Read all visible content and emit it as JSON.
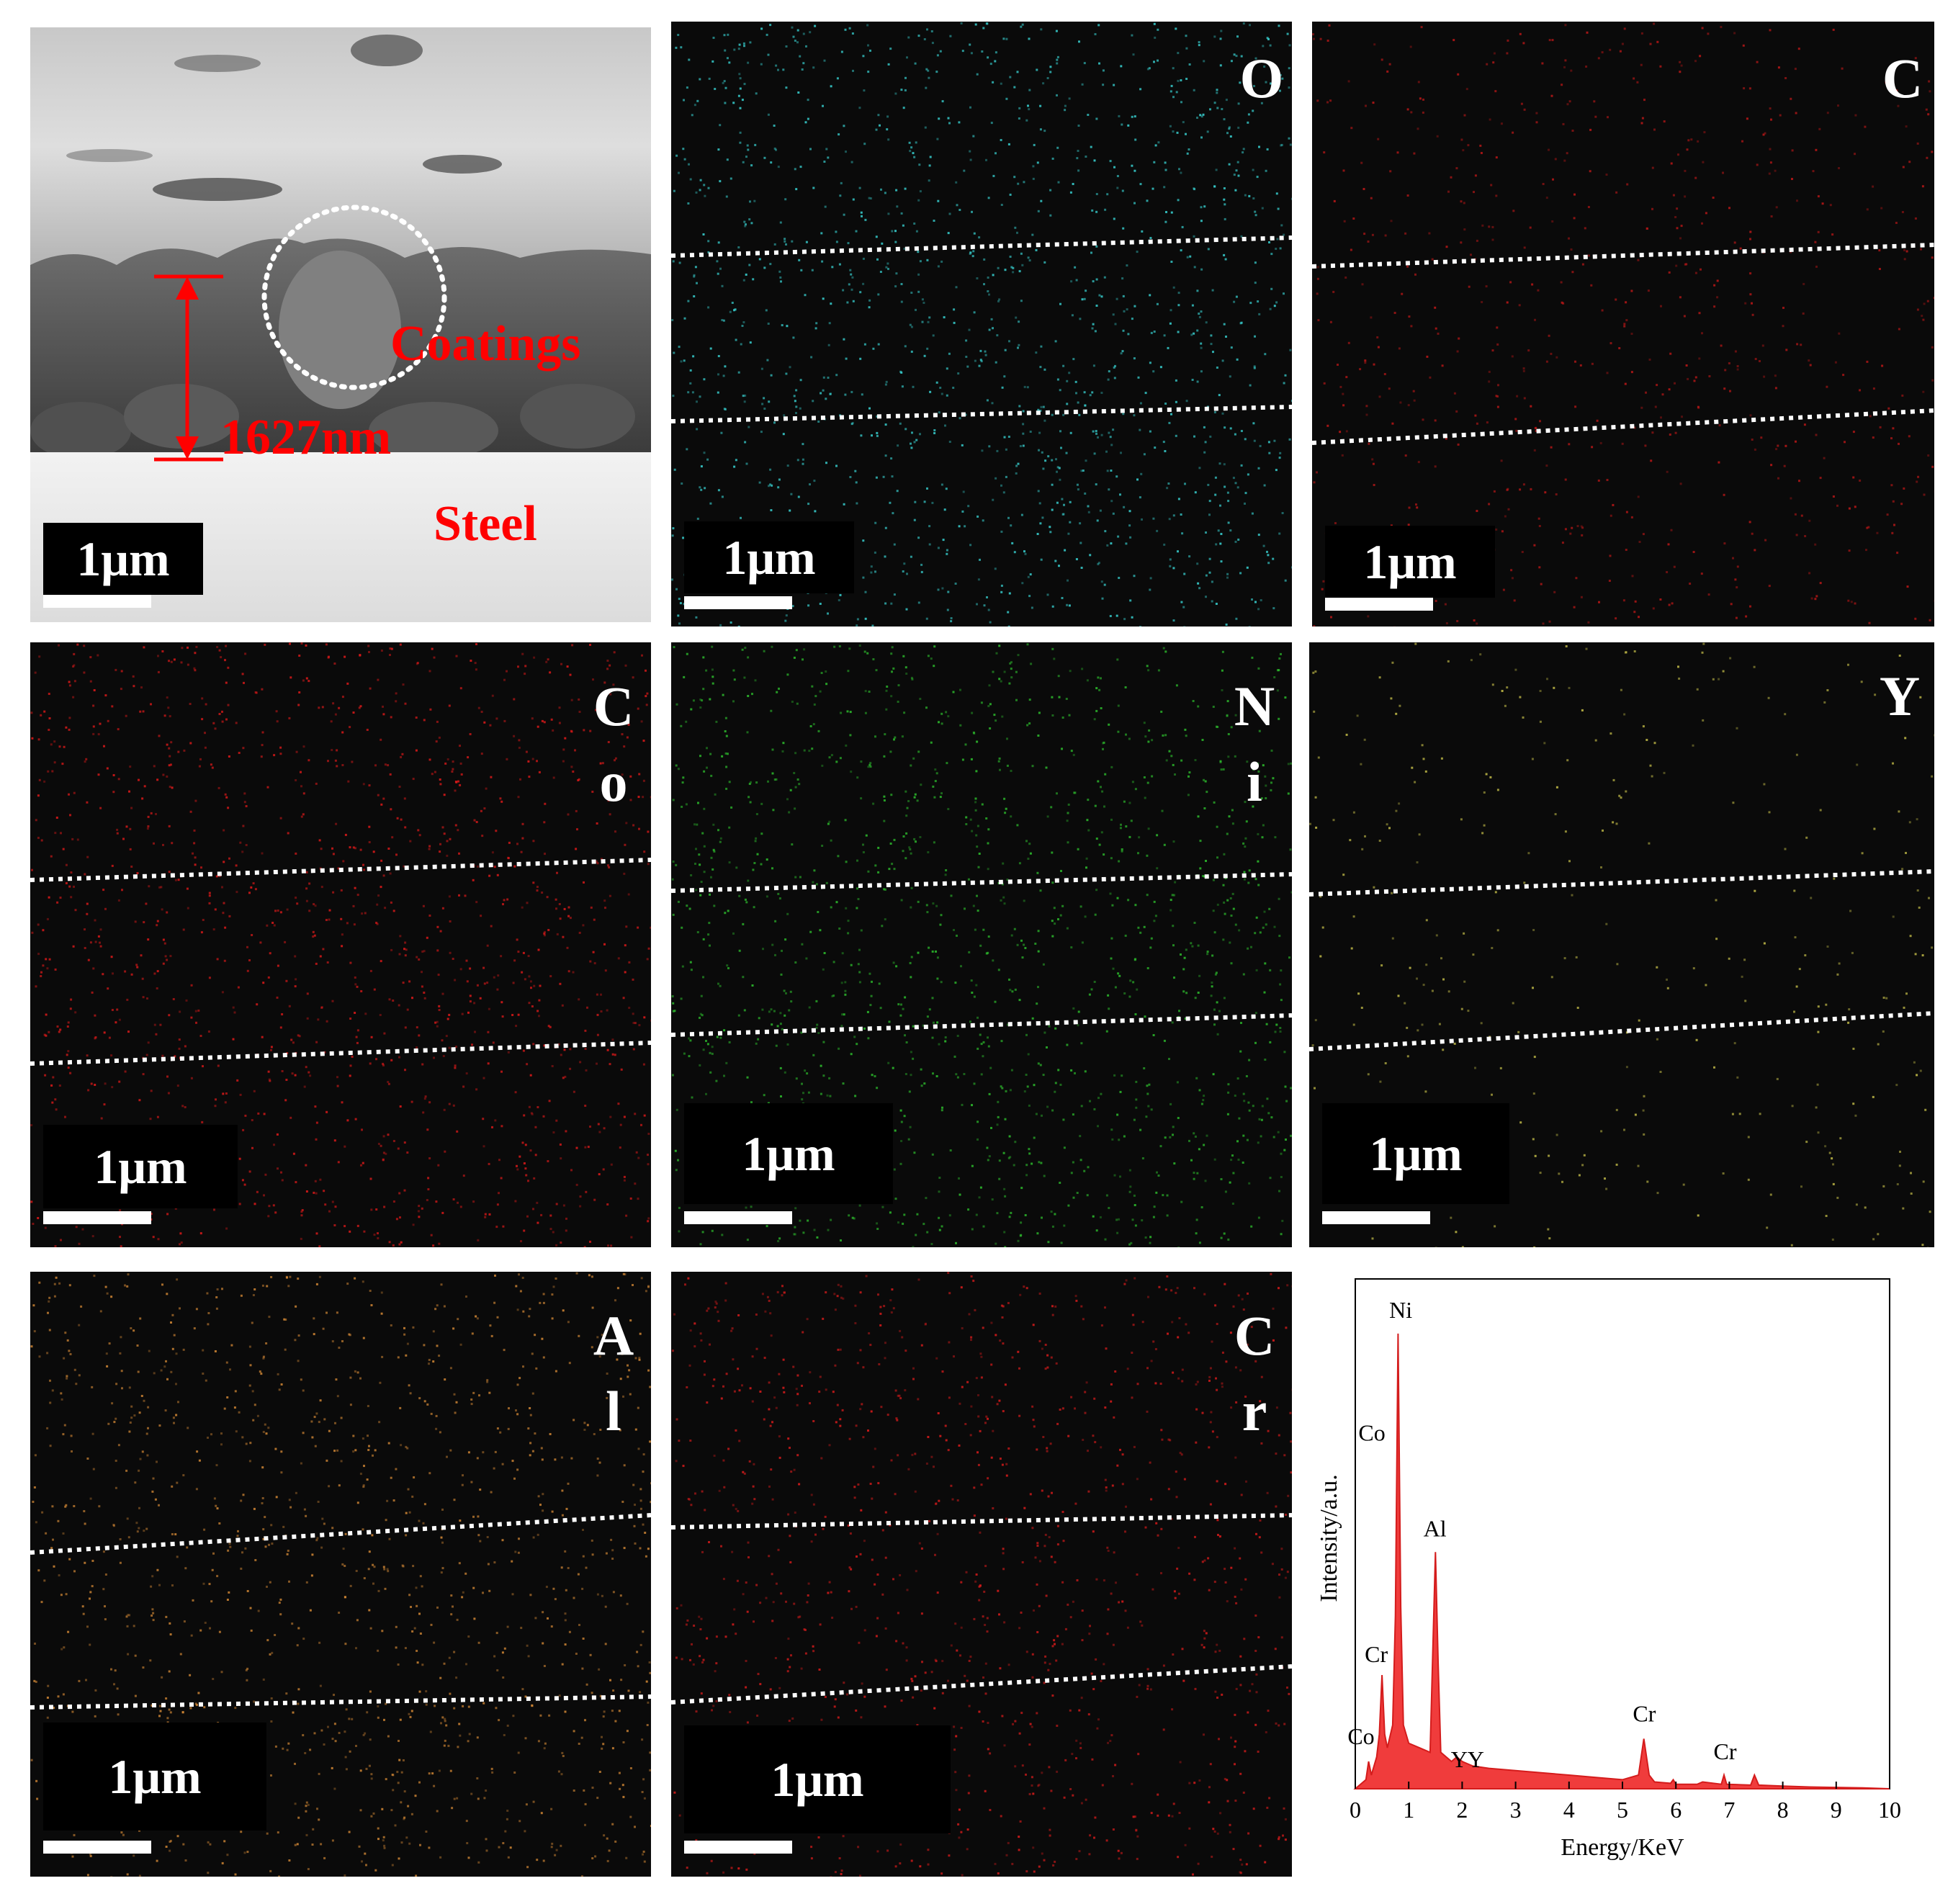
{
  "figure": {
    "scale_bar": "1μm",
    "sem": {
      "coatings_label": "Coatings",
      "thickness_label": "1627nm",
      "steel_label": "Steel"
    },
    "maps": [
      {
        "id": "O",
        "line1": "O",
        "line2": "",
        "color": "#39d6d6"
      },
      {
        "id": "C",
        "line1": "C",
        "line2": "",
        "color": "#c21818"
      },
      {
        "id": "Co",
        "line1": "C",
        "line2": "o",
        "color": "#e31a1a"
      },
      {
        "id": "Ni",
        "line1": "N",
        "line2": "i",
        "color": "#2ec22e"
      },
      {
        "id": "Y",
        "line1": "Y",
        "line2": "",
        "color": "#c9c24a"
      },
      {
        "id": "Al",
        "line1": "A",
        "line2": "l",
        "color": "#d68a36"
      },
      {
        "id": "Cr",
        "line1": "C",
        "line2": "r",
        "color": "#e01c1c"
      }
    ]
  },
  "chart_data": {
    "type": "area",
    "xlabel": "Energy/KeV",
    "ylabel": "Intensity/a.u.",
    "xlim": [
      0,
      10
    ],
    "xticks": [
      "0",
      "1",
      "2",
      "3",
      "4",
      "5",
      "6",
      "7",
      "8",
      "9",
      "10"
    ],
    "fill_color": "#f03c3c",
    "x": [
      0,
      0.2,
      0.25,
      0.3,
      0.4,
      0.45,
      0.5,
      0.55,
      0.6,
      0.7,
      0.75,
      0.8,
      0.85,
      0.9,
      1.0,
      1.2,
      1.4,
      1.45,
      1.5,
      1.55,
      1.6,
      1.8,
      1.9,
      2.0,
      2.2,
      2.5,
      3.0,
      3.5,
      4.0,
      4.5,
      5.0,
      5.3,
      5.4,
      5.5,
      5.6,
      5.9,
      5.95,
      6.0,
      6.4,
      6.5,
      6.85,
      6.9,
      6.95,
      7.4,
      7.47,
      7.55,
      8.0,
      8.5,
      9.0,
      9.5,
      10.0
    ],
    "y": [
      0,
      2,
      6,
      3,
      7,
      12,
      25,
      12,
      9,
      14,
      38,
      100,
      40,
      14,
      10,
      9,
      8,
      30,
      52,
      28,
      8,
      6,
      7,
      6,
      5,
      4.5,
      4,
      3.5,
      3,
      2.5,
      2,
      3,
      11,
      3,
      1.5,
      1.2,
      2,
      1,
      1,
      1.5,
      1,
      3,
      1,
      0.8,
      3,
      0.8,
      0.6,
      0.4,
      0.3,
      0.2,
      0
    ],
    "annotations": [
      {
        "text": "Ni",
        "x": 0.85
      },
      {
        "text": "Co",
        "x": 0.77
      },
      {
        "text": "Al",
        "x": 1.49
      },
      {
        "text": "Cr",
        "x": 0.5
      },
      {
        "text": "Co",
        "x": 0.35
      },
      {
        "text": "YY",
        "x": 2.1
      },
      {
        "text": "Cr",
        "x": 5.41
      },
      {
        "text": "Cr",
        "x": 6.92
      }
    ]
  }
}
